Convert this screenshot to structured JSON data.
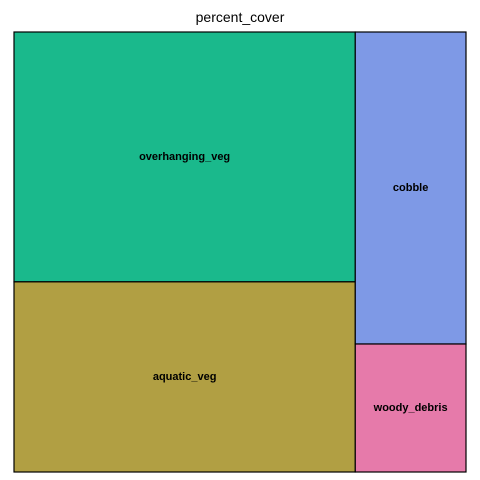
{
  "chart_data": {
    "type": "treemap",
    "title": "percent_cover",
    "items": [
      {
        "name": "overhanging_veg",
        "value": 38.5,
        "color": "#1AB98C"
      },
      {
        "name": "aquatic_veg",
        "value": 29.3,
        "color": "#B19F43"
      },
      {
        "name": "cobble",
        "value": 15.6,
        "color": "#7E99E6"
      },
      {
        "name": "woody_debris",
        "value": 6.4,
        "color": "#E67AAA"
      }
    ]
  }
}
